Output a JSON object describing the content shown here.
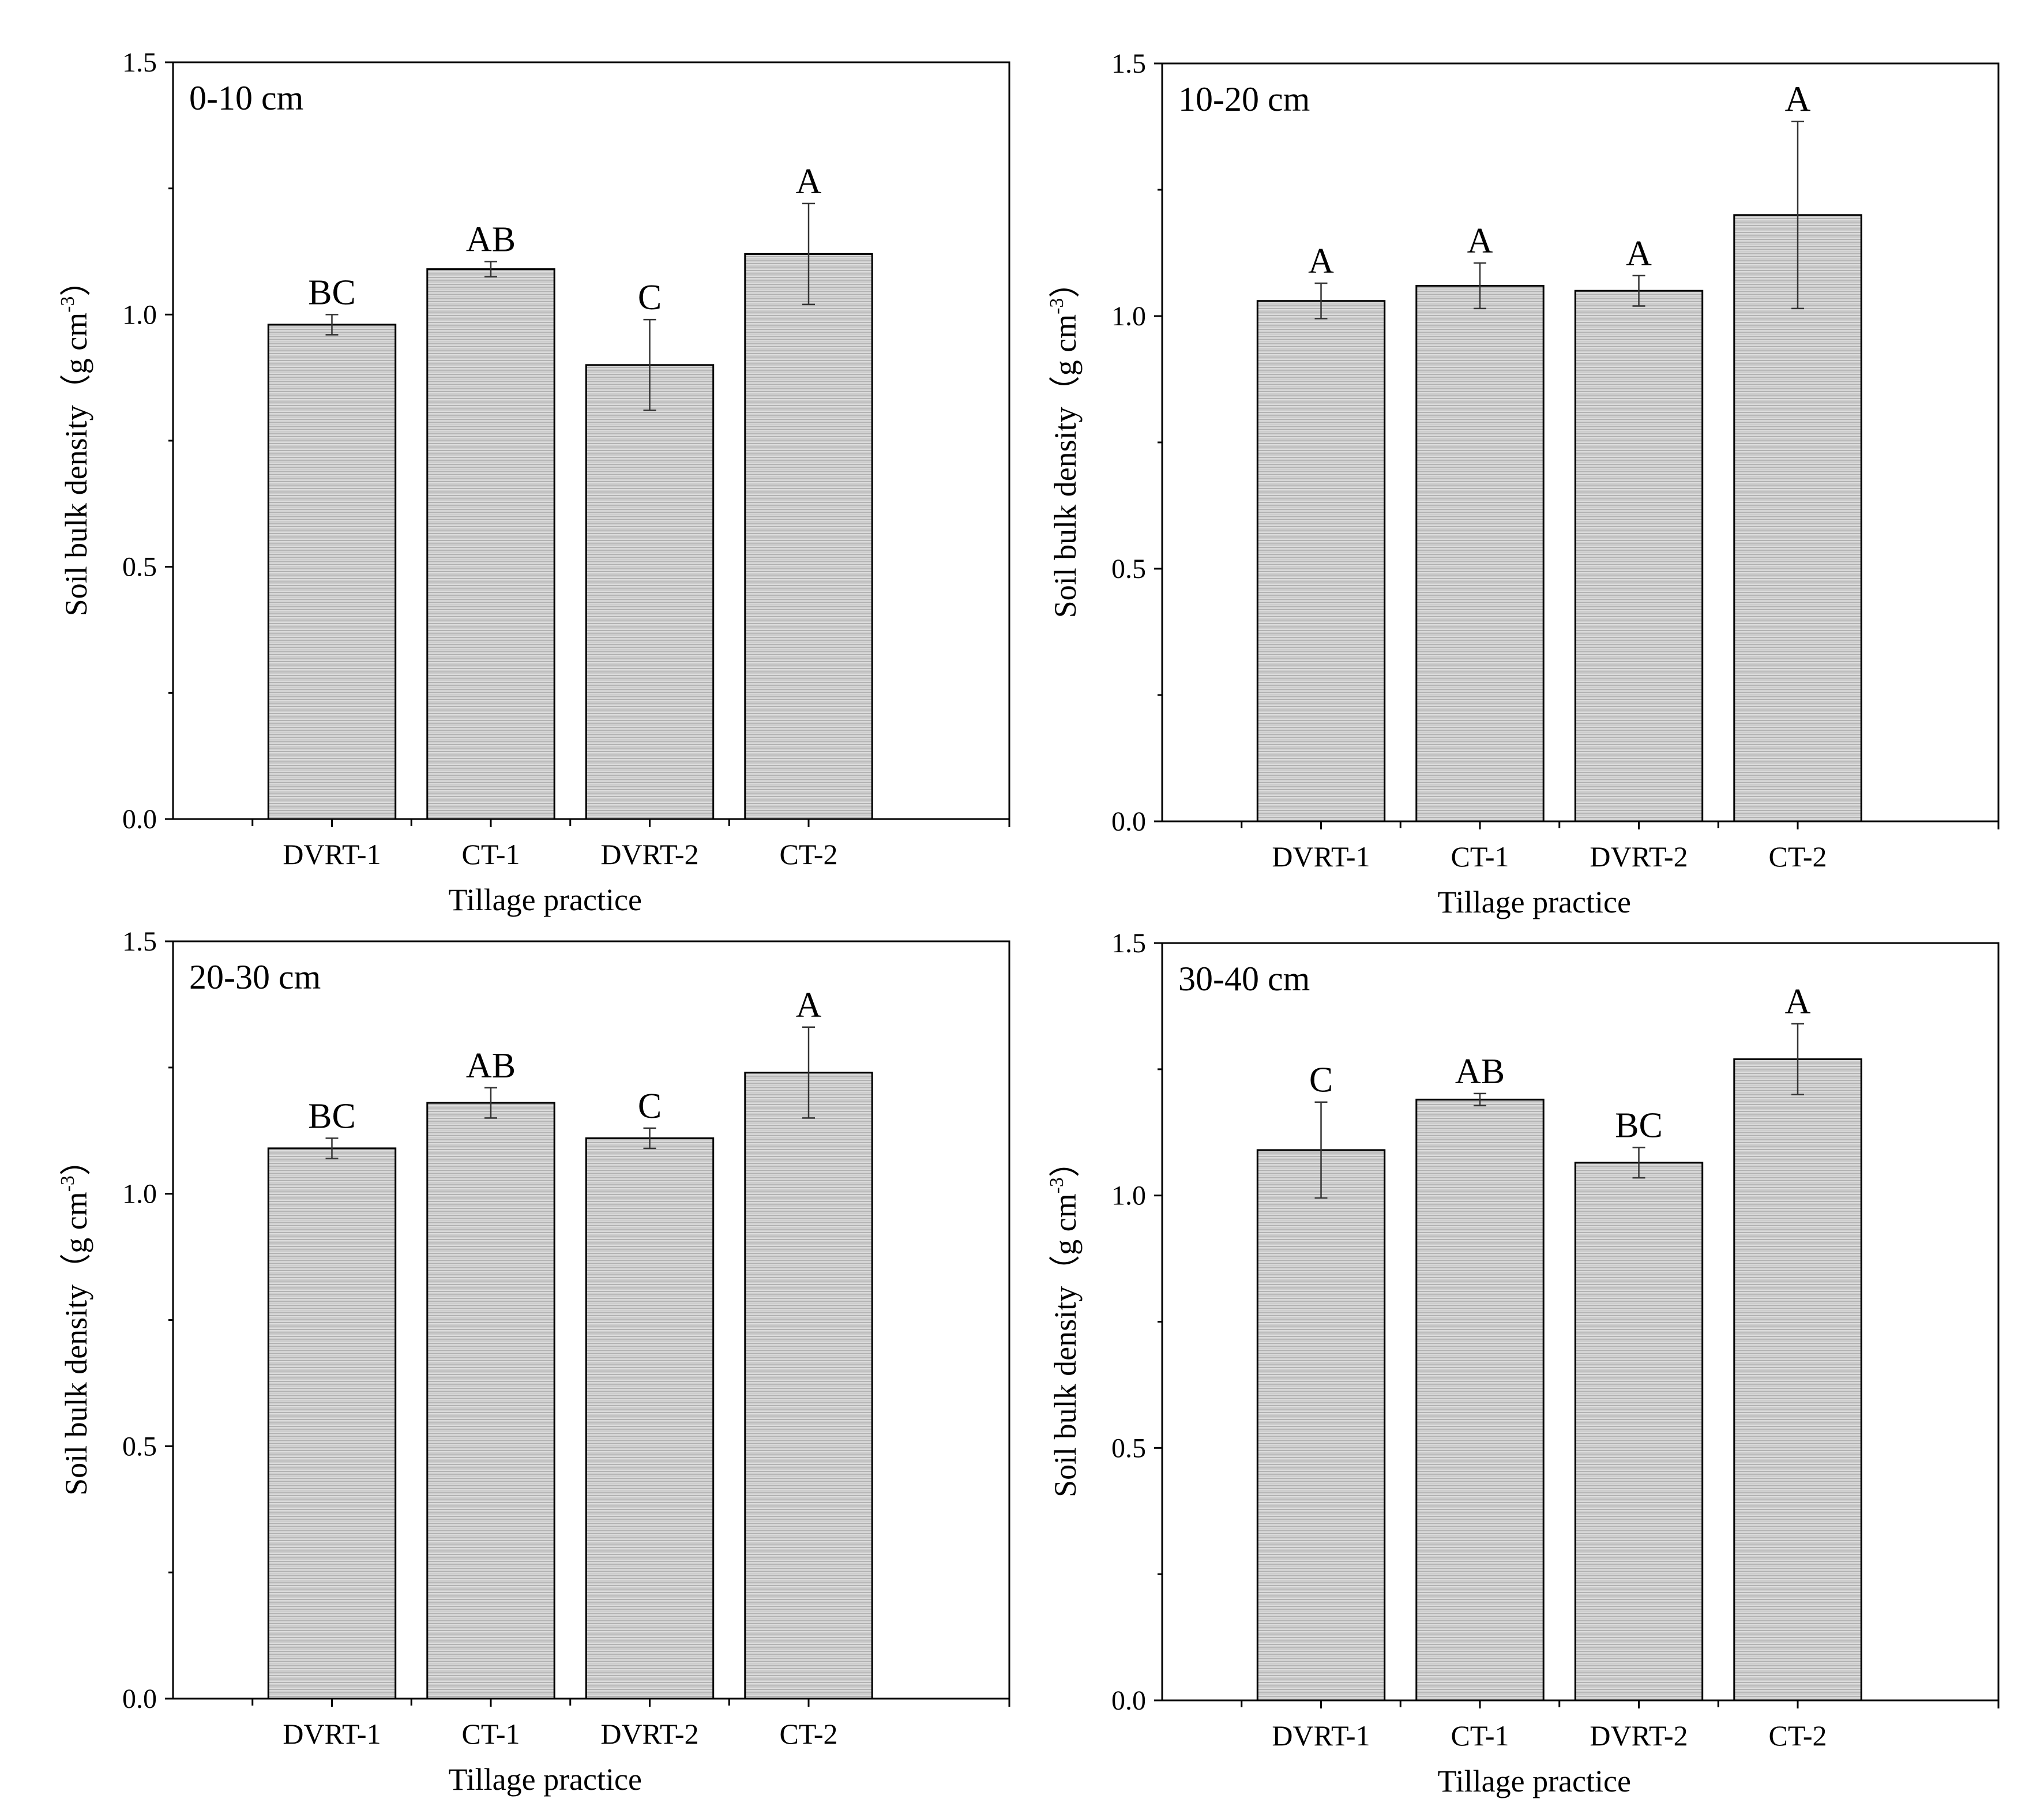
{
  "figure": {
    "hatch_color": "#cfcfcf",
    "bar_fill": "#d6d6d6",
    "axis_color": "#000000"
  },
  "chart_data": [
    {
      "type": "bar",
      "panel_label": "0-10 cm",
      "categories": [
        "DVRT-1",
        "CT-1",
        "DVRT-2",
        "CT-2"
      ],
      "values": [
        0.98,
        1.09,
        0.9,
        1.12
      ],
      "errors": [
        0.02,
        0.015,
        0.09,
        0.1
      ],
      "significance": [
        "BC",
        "AB",
        "C",
        "A"
      ],
      "xlabel": "Tillage practice",
      "ylabel": "Soil bulk density（g cm",
      "ylabel_sup": "-3",
      "ylabel_close": "）",
      "ylim": [
        0,
        1.5
      ],
      "yticks": [
        "0.0",
        "0.5",
        "1.0",
        "1.5"
      ]
    },
    {
      "type": "bar",
      "panel_label": "10-20 cm",
      "categories": [
        "DVRT-1",
        "CT-1",
        "DVRT-2",
        "CT-2"
      ],
      "values": [
        1.03,
        1.06,
        1.05,
        1.2
      ],
      "errors": [
        0.035,
        0.045,
        0.03,
        0.185
      ],
      "significance": [
        "A",
        "A",
        "A",
        "A"
      ],
      "xlabel": "Tillage practice",
      "ylabel": "Soil bulk density（g cm",
      "ylabel_sup": "-3",
      "ylabel_close": "）",
      "ylim": [
        0,
        1.5
      ],
      "yticks": [
        "0.0",
        "0.5",
        "1.0",
        "1.5"
      ]
    },
    {
      "type": "bar",
      "panel_label": "20-30 cm",
      "categories": [
        "DVRT-1",
        "CT-1",
        "DVRT-2",
        "CT-2"
      ],
      "values": [
        1.09,
        1.18,
        1.11,
        1.24
      ],
      "errors": [
        0.02,
        0.03,
        0.02,
        0.09
      ],
      "significance": [
        "BC",
        "AB",
        "C",
        "A"
      ],
      "xlabel": "Tillage practice",
      "ylabel": "Soil bulk density（g cm",
      "ylabel_sup": "-3",
      "ylabel_close": "）",
      "ylim": [
        0,
        1.5
      ],
      "yticks": [
        "0.0",
        "0.5",
        "1.0",
        "1.5"
      ]
    },
    {
      "type": "bar",
      "panel_label": "30-40 cm",
      "categories": [
        "DVRT-1",
        "CT-1",
        "DVRT-2",
        "CT-2"
      ],
      "values": [
        1.09,
        1.19,
        1.065,
        1.27
      ],
      "errors": [
        0.095,
        0.012,
        0.03,
        0.07
      ],
      "significance": [
        "C",
        "AB",
        "BC",
        "A"
      ],
      "xlabel": "Tillage practice",
      "ylabel": "Soil bulk density（g cm",
      "ylabel_sup": "-3",
      "ylabel_close": "）",
      "ylim": [
        0,
        1.5
      ],
      "yticks": [
        "0.0",
        "0.5",
        "1.0",
        "1.5"
      ]
    }
  ]
}
